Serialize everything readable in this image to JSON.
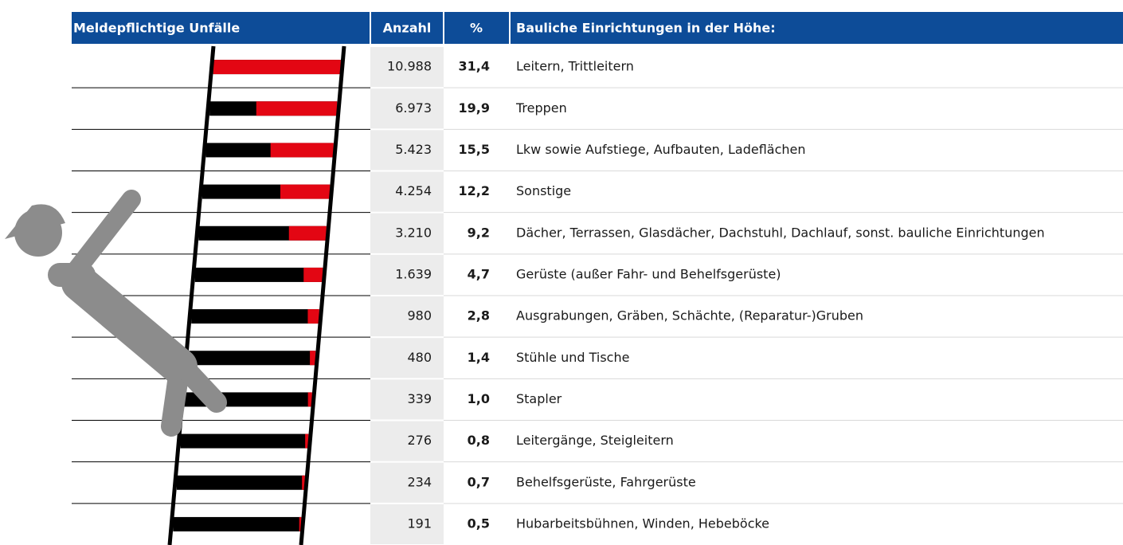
{
  "chart_data": {
    "type": "bar",
    "title": "Meldepflichtige Unfälle",
    "category_label": "Bauliche Einrichtungen in der Höhe:",
    "categories": [
      "Leitern, Trittleitern",
      "Treppen",
      "Lkw sowie Aufstiege, Aufbauten, Ladeflächen",
      "Sonstige",
      "Dächer, Terrassen, Glasdächer, Dachstuhl, Dachlauf, sonst. bauliche Einrichtungen",
      "Gerüste (außer Fahr- und Behelfsgerüste)",
      "Ausgrabungen, Gräben, Schächte, (Reparatur-)Gruben",
      "Stühle und Tische",
      "Stapler",
      "Leitergänge, Steigleitern",
      "Behelfsgerüste, Fahrgerüste",
      "Hubarbeitsbühnen, Winden, Hebeböcke"
    ],
    "series": [
      {
        "name": "Anzahl",
        "values": [
          10988,
          6973,
          5423,
          4254,
          3210,
          1639,
          980,
          480,
          339,
          276,
          234,
          191
        ],
        "value_labels": [
          "10.988",
          "6.973",
          "5.423",
          "4.254",
          "3.210",
          "1.639",
          "980",
          "480",
          "339",
          "276",
          "234",
          "191"
        ]
      },
      {
        "name": "%",
        "color": "#e30613",
        "values": [
          31.4,
          19.9,
          15.5,
          12.2,
          9.2,
          4.7,
          2.8,
          1.4,
          1.0,
          0.8,
          0.7,
          0.5
        ],
        "value_labels": [
          "31,4",
          "19,9",
          "15,5",
          "12,2",
          "9,2",
          "4,7",
          "2,8",
          "1,4",
          "1,0",
          "0,8",
          "0,7",
          "0,5"
        ]
      }
    ]
  }
}
